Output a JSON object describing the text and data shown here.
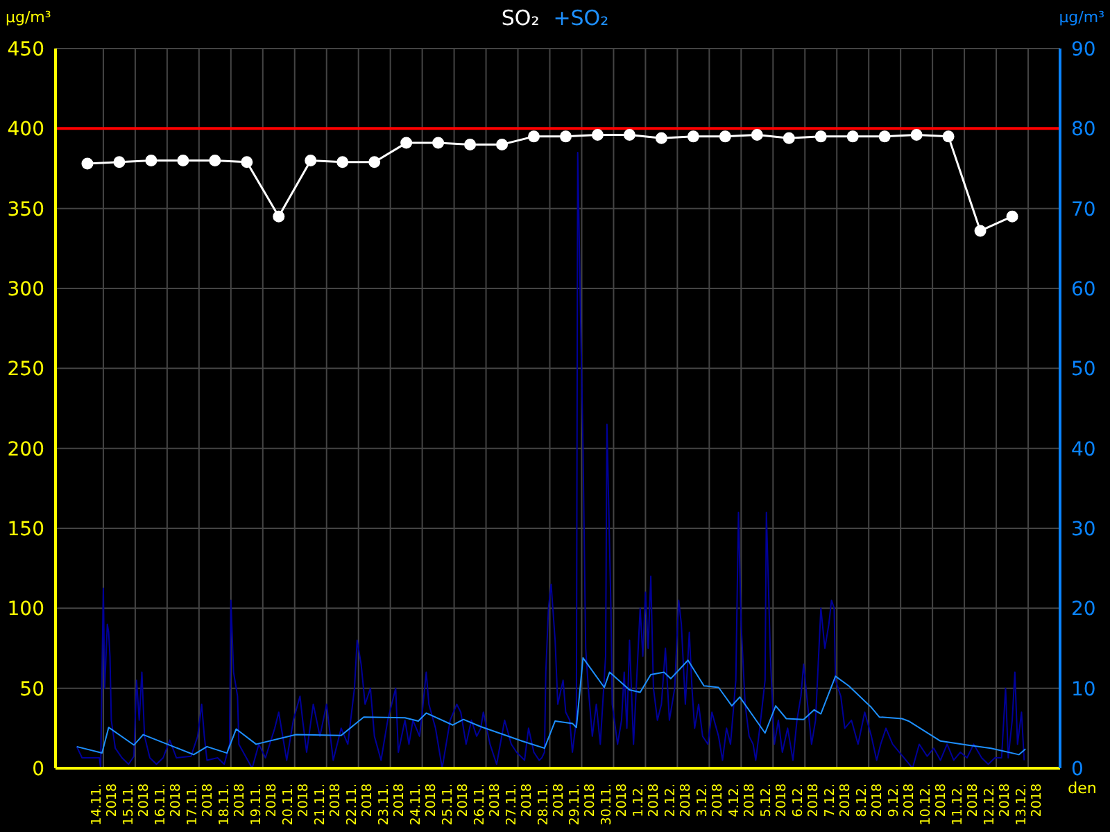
{
  "chart_data": {
    "type": "line",
    "xlabel": "den",
    "ylabel": "µg/m³",
    "y2label": "µg/m³",
    "xlim": [
      "2018-11-12T12:00",
      "2018-12-14"
    ],
    "xticks": [
      {
        "value": "2018-11-14",
        "label": "14.11.\n2018"
      },
      {
        "value": "2018-11-15",
        "label": "15.11.\n2018"
      },
      {
        "value": "2018-11-16",
        "label": "16.11.\n2018"
      },
      {
        "value": "2018-11-17",
        "label": "17.11.\n2018"
      },
      {
        "value": "2018-11-18",
        "label": "18.11.\n2018"
      },
      {
        "value": "2018-11-19",
        "label": "19.11.\n2018"
      },
      {
        "value": "2018-11-20",
        "label": "20.11.\n2018"
      },
      {
        "value": "2018-11-21",
        "label": "21.11.\n2018"
      },
      {
        "value": "2018-11-22",
        "label": "22.11.\n2018"
      },
      {
        "value": "2018-11-23",
        "label": "23.11.\n2018"
      },
      {
        "value": "2018-11-24",
        "label": "24.11.\n2018"
      },
      {
        "value": "2018-11-25",
        "label": "25.11.\n2018"
      },
      {
        "value": "2018-11-26",
        "label": "26.11.\n2018"
      },
      {
        "value": "2018-11-27",
        "label": "27.11.\n2018"
      },
      {
        "value": "2018-11-28",
        "label": "28.11.\n2018"
      },
      {
        "value": "2018-11-29",
        "label": "29.11.\n2018"
      },
      {
        "value": "2018-11-30",
        "label": "30.11.\n2018"
      },
      {
        "value": "2018-12-01",
        "label": "1.12.\n2018"
      },
      {
        "value": "2018-12-02",
        "label": "2.12.\n2018"
      },
      {
        "value": "2018-12-03",
        "label": "3.12.\n2018"
      },
      {
        "value": "2018-12-04",
        "label": "4.12.\n2018"
      },
      {
        "value": "2018-12-05",
        "label": "5.12.\n2018"
      },
      {
        "value": "2018-12-06",
        "label": "6.12.\n2018"
      },
      {
        "value": "2018-12-07",
        "label": "7.12.\n2018"
      },
      {
        "value": "2018-12-08",
        "label": "8.12.\n2018"
      },
      {
        "value": "2018-12-09",
        "label": "9.12.\n2018"
      },
      {
        "value": "2018-12-10",
        "label": "10.12.\n2018"
      },
      {
        "value": "2018-12-11",
        "label": "11.12.\n2018"
      },
      {
        "value": "2018-12-12",
        "label": "12.12.\n2018"
      },
      {
        "value": "2018-12-13",
        "label": "13.12.\n2018"
      }
    ],
    "ylim": [
      0,
      450
    ],
    "yticks": [
      0,
      50,
      100,
      150,
      200,
      250,
      300,
      350,
      400,
      450
    ],
    "y2lim": [
      0,
      90
    ],
    "y2ticks": [
      0,
      10,
      20,
      30,
      40,
      50,
      60,
      70,
      80,
      90
    ],
    "grid": true,
    "legend": "top",
    "ref_lines": [
      {
        "axis": "y",
        "value": 400,
        "color": "#ff0000"
      }
    ],
    "series": [
      {
        "name": "SO₂",
        "color": "#ffffff",
        "axis": "y",
        "marker": "circle",
        "x": [
          "2018-11-13T12:00",
          "2018-11-14T12:00",
          "2018-11-15T12:00",
          "2018-11-16T12:00",
          "2018-11-17T12:00",
          "2018-11-18T12:00",
          "2018-11-19T12:00",
          "2018-11-20T12:00",
          "2018-11-21T12:00",
          "2018-11-22T12:00",
          "2018-11-23T12:00",
          "2018-11-24T12:00",
          "2018-11-25T12:00",
          "2018-11-26T12:00",
          "2018-11-27T12:00",
          "2018-11-28T12:00",
          "2018-11-29T12:00",
          "2018-11-30T12:00",
          "2018-12-01T12:00",
          "2018-12-02T12:00",
          "2018-12-03T12:00",
          "2018-12-04T12:00",
          "2018-12-05T12:00",
          "2018-12-06T12:00",
          "2018-12-07T12:00",
          "2018-12-08T12:00",
          "2018-12-09T12:00",
          "2018-12-10T12:00",
          "2018-12-11T12:00",
          "2018-12-12T12:00"
        ],
        "values": [
          378,
          379,
          380,
          380,
          380,
          379,
          345,
          380,
          379,
          379,
          391,
          391,
          390,
          390,
          395,
          395,
          396,
          396,
          394,
          395,
          395,
          396,
          394,
          395,
          395,
          395,
          396,
          395,
          336,
          345
        ]
      },
      {
        "name": "+SO₂",
        "color": "#1e90ff",
        "axis": "y2",
        "marker": "none",
        "x": [
          "2018-11-13T04:00",
          "2018-11-13T23:00",
          "2018-11-14T04:00",
          "2018-11-14T23:00",
          "2018-11-15T06:00",
          "2018-11-16T20:00",
          "2018-11-17T06:00",
          "2018-11-17T21:00",
          "2018-11-18T04:00",
          "2018-11-18T19:00",
          "2018-11-20T01:00",
          "2018-11-21T11:00",
          "2018-11-22T04:00",
          "2018-11-23T11:00",
          "2018-11-23T21:00",
          "2018-11-24T03:00",
          "2018-11-24T23:00",
          "2018-11-25T07:00",
          "2018-11-25T20:00",
          "2018-11-27T03:00",
          "2018-11-27T20:00",
          "2018-11-28T04:00",
          "2018-11-28T17:00",
          "2018-11-28T20:00",
          "2018-11-29T01:00",
          "2018-11-29T17:00",
          "2018-11-29T21:00",
          "2018-11-30T12:00",
          "2018-11-30T20:00",
          "2018-12-01T04:00",
          "2018-12-01T14:00",
          "2018-12-01T19:00",
          "2018-12-02T08:00",
          "2018-12-02T20:00",
          "2018-12-03T07:00",
          "2018-12-03T17:00",
          "2018-12-03T23:00",
          "2018-12-04T18:00",
          "2018-12-05T02:00",
          "2018-12-05T10:00",
          "2018-12-05T23:00",
          "2018-12-06T07:00",
          "2018-12-06T12:00",
          "2018-12-06T23:00",
          "2018-12-07T09:00",
          "2018-12-08T02:00",
          "2018-12-08T08:00",
          "2018-12-09T01:00",
          "2018-12-09T06:00",
          "2018-12-10T06:00",
          "2018-12-11T02:00",
          "2018-12-11T20:00",
          "2018-12-12T17:00",
          "2018-12-12T22:00"
        ],
        "values": [
          2.7,
          1.9,
          5.1,
          2.9,
          4.2,
          1.7,
          2.7,
          1.9,
          4.9,
          3,
          4.2,
          4.1,
          6.4,
          6.3,
          5.9,
          6.9,
          5.4,
          6.1,
          5.2,
          3.4,
          2.5,
          5.9,
          5.6,
          5.1,
          13.8,
          10.1,
          12,
          9.8,
          9.5,
          11.7,
          12,
          11.2,
          13.5,
          10.3,
          10.1,
          7.8,
          8.9,
          4.4,
          7.8,
          6.2,
          6.1,
          7.3,
          6.8,
          11.5,
          10.3,
          7.6,
          6.4,
          6.2,
          5.9,
          3.4,
          2.9,
          2.5,
          1.7,
          2.4
        ]
      },
      {
        "color": "#000099",
        "axis": "y2",
        "marker": "none",
        "x": [
          "2018-11-13T04:00",
          "2018-11-13T08:00",
          "2018-11-13T21:00",
          "2018-11-13T22:00",
          "2018-11-13T23:00",
          "2018-11-14T00:00",
          "2018-11-14T01:00",
          "2018-11-14T03:00",
          "2018-11-14T04:00",
          "2018-11-14T05:00",
          "2018-11-14T06:00",
          "2018-11-14T09:00",
          "2018-11-14T14:00",
          "2018-11-14T19:00",
          "2018-11-14T23:00",
          "2018-11-15T01:00",
          "2018-11-15T03:00",
          "2018-11-15T05:00",
          "2018-11-15T07:00",
          "2018-11-15T11:00",
          "2018-11-15T16:00",
          "2018-11-15T21:00",
          "2018-11-16T02:00",
          "2018-11-16T07:00",
          "2018-11-16T18:00",
          "2018-11-16T23:00",
          "2018-11-17T02:00",
          "2018-11-17T04:00",
          "2018-11-17T06:00",
          "2018-11-17T14:00",
          "2018-11-17T19:00",
          "2018-11-17T23:00",
          "2018-11-18T00:00",
          "2018-11-18T02:00",
          "2018-11-18T05:00",
          "2018-11-18T06:00",
          "2018-11-18T11:00",
          "2018-11-18T16:00",
          "2018-11-18T21:00",
          "2018-11-19T02:00",
          "2018-11-19T09:00",
          "2018-11-19T12:00",
          "2018-11-19T18:00",
          "2018-11-19T23:00",
          "2018-11-20T04:00",
          "2018-11-20T06:00",
          "2018-11-20T09:00",
          "2018-11-20T14:00",
          "2018-11-20T19:00",
          "2018-11-21T00:00",
          "2018-11-21T05:00",
          "2018-11-21T11:00",
          "2018-11-21T16:00",
          "2018-11-21T21:00",
          "2018-11-21T23:00",
          "2018-11-22T02:00",
          "2018-11-22T05:00",
          "2018-11-22T09:00",
          "2018-11-22T12:00",
          "2018-11-22T17:00",
          "2018-11-22T22:00",
          "2018-11-23T04:00",
          "2018-11-23T06:00",
          "2018-11-23T11:00",
          "2018-11-23T14:00",
          "2018-11-23T17:00",
          "2018-11-23T22:00",
          "2018-11-24T00:00",
          "2018-11-24T03:00",
          "2018-11-24T05:00",
          "2018-11-24T10:00",
          "2018-11-24T15:00",
          "2018-11-24T21:00",
          "2018-11-25T02:00",
          "2018-11-25T05:00",
          "2018-11-25T09:00",
          "2018-11-25T13:00",
          "2018-11-25T17:00",
          "2018-11-25T20:00",
          "2018-11-25T22:00",
          "2018-11-26T03:00",
          "2018-11-26T08:00",
          "2018-11-26T14:00",
          "2018-11-26T19:00",
          "2018-11-26T23:00",
          "2018-11-27T05:00",
          "2018-11-27T08:00",
          "2018-11-27T12:00",
          "2018-11-27T16:00",
          "2018-11-27T18:00",
          "2018-11-27T20:00",
          "2018-11-27T21:00",
          "2018-11-27T23:00",
          "2018-11-28T01:00",
          "2018-11-28T04:00",
          "2018-11-28T06:00",
          "2018-11-28T10:00",
          "2018-11-28T12:00",
          "2018-11-28T15:00",
          "2018-11-28T17:00",
          "2018-11-28T20:00",
          "2018-11-28T21:00",
          "2018-11-28T23:00",
          "2018-11-29T01:00",
          "2018-11-29T03:00",
          "2018-11-29T05:00",
          "2018-11-29T08:00",
          "2018-11-29T11:00",
          "2018-11-29T14:00",
          "2018-11-29T18:00",
          "2018-11-29T19:00",
          "2018-11-29T22:00",
          "2018-11-29T23:00",
          "2018-11-30T03:00",
          "2018-11-30T06:00",
          "2018-11-30T08:00",
          "2018-11-30T10:00",
          "2018-11-30T12:00",
          "2018-11-30T15:00",
          "2018-11-30T20:00",
          "2018-11-30T22:00",
          "2018-12-01T00:00",
          "2018-12-01T02:00",
          "2018-12-01T04:00",
          "2018-12-01T06:00",
          "2018-12-01T09:00",
          "2018-12-01T12:00",
          "2018-12-01T15:00",
          "2018-12-01T18:00",
          "2018-12-01T22:00",
          "2018-12-02T01:00",
          "2018-12-02T03:00",
          "2018-12-02T06:00",
          "2018-12-02T09:00",
          "2018-12-02T11:00",
          "2018-12-02T13:00",
          "2018-12-02T16:00",
          "2018-12-02T19:00",
          "2018-12-02T23:00",
          "2018-12-03T02:00",
          "2018-12-03T07:00",
          "2018-12-03T10:00",
          "2018-12-03T13:00",
          "2018-12-03T16:00",
          "2018-12-03T20:00",
          "2018-12-03T22:00",
          "2018-12-04T00:00",
          "2018-12-04T03:00",
          "2018-12-04T06:00",
          "2018-12-04T09:00",
          "2018-12-04T11:00",
          "2018-12-04T14:00",
          "2018-12-04T18:00",
          "2018-12-04T19:00",
          "2018-12-04T22:00",
          "2018-12-05T01:00",
          "2018-12-05T04:00",
          "2018-12-05T07:00",
          "2018-12-05T11:00",
          "2018-12-05T15:00",
          "2018-12-05T18:00",
          "2018-12-05T21:00",
          "2018-12-05T23:00",
          "2018-12-06T02:00",
          "2018-12-06T05:00",
          "2018-12-06T08:00",
          "2018-12-06T10:00",
          "2018-12-06T12:00",
          "2018-12-06T15:00",
          "2018-12-06T18:00",
          "2018-12-06T20:00",
          "2018-12-06T22:00",
          "2018-12-06T23:00",
          "2018-12-07T03:00",
          "2018-12-07T06:00",
          "2018-12-07T11:00",
          "2018-12-07T16:00",
          "2018-12-07T21:00",
          "2018-12-08T02:00",
          "2018-12-08T06:00",
          "2018-12-08T09:00",
          "2018-12-08T13:00",
          "2018-12-08T18:00",
          "2018-12-08T23:00",
          "2018-12-09T04:00",
          "2018-12-09T09:00",
          "2018-12-09T14:00",
          "2018-12-09T20:00",
          "2018-12-10T01:00",
          "2018-12-10T06:00",
          "2018-12-10T11:00",
          "2018-12-10T16:00",
          "2018-12-10T21:00",
          "2018-12-11T02:00",
          "2018-12-11T07:00",
          "2018-12-11T13:00",
          "2018-12-11T18:00",
          "2018-12-11T23:00",
          "2018-12-12T04:00",
          "2018-12-12T07:00",
          "2018-12-12T09:00",
          "2018-12-12T12:00",
          "2018-12-12T14:00",
          "2018-12-12T16:00",
          "2018-12-12T19:00",
          "2018-12-12T21:00"
        ],
        "values": [
          2.7,
          1.3,
          1.3,
          0,
          12,
          22.5,
          10,
          18,
          17,
          14,
          6,
          2.5,
          1.3,
          0.5,
          1.5,
          11,
          6,
          12,
          4,
          1.3,
          0.5,
          1.3,
          3.5,
          1.3,
          1.5,
          4,
          8,
          4,
          1,
          1.3,
          0.5,
          3,
          21,
          12,
          9,
          3,
          1.5,
          0,
          3,
          1.3,
          5,
          7,
          1,
          6,
          9,
          6,
          2,
          8,
          4,
          8,
          1,
          5,
          3,
          10,
          16,
          13,
          8,
          10,
          4,
          1,
          6,
          10,
          2,
          6,
          3,
          6,
          4,
          7,
          12,
          8,
          5,
          0,
          6,
          8,
          7,
          3,
          6,
          4,
          5,
          7,
          3,
          0.5,
          6,
          3,
          2,
          1,
          5,
          2,
          1,
          1.3,
          2,
          12,
          20,
          23,
          16,
          8,
          11,
          7,
          6,
          2,
          6,
          77,
          58,
          40,
          15,
          10,
          4,
          8,
          3,
          14,
          43,
          20,
          8,
          3,
          6,
          12,
          5,
          16,
          3,
          20,
          14,
          22,
          15,
          24,
          10,
          6,
          8,
          15,
          6,
          10,
          21,
          18,
          8,
          17,
          10,
          5,
          8,
          4,
          3,
          7,
          4,
          1,
          5,
          3,
          11,
          32,
          18,
          8,
          4,
          3,
          1,
          5,
          11,
          32,
          14,
          3,
          6,
          2,
          5,
          1,
          6,
          9,
          13,
          8,
          3,
          6,
          13,
          20,
          15,
          18,
          21,
          20,
          11,
          9,
          5,
          6,
          3,
          7,
          4,
          1,
          3,
          5,
          3,
          2,
          1,
          0,
          3,
          1.5,
          2.5,
          1,
          3,
          1,
          2,
          1.3,
          3,
          1.3,
          0.5,
          1.3,
          1.3,
          10,
          1.3,
          6,
          12,
          3,
          7,
          1
        ]
      }
    ]
  }
}
